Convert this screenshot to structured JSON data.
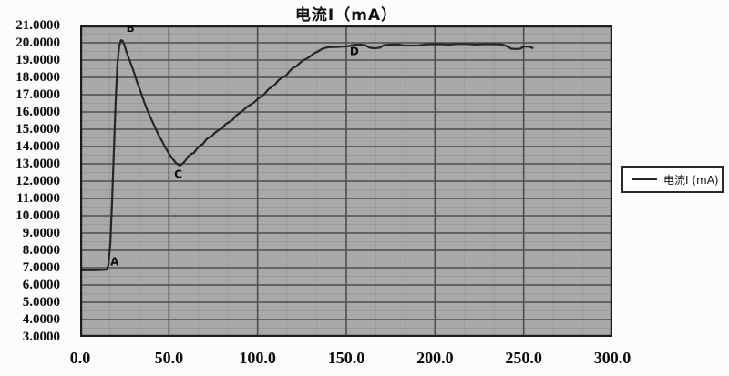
{
  "chart_data": {
    "type": "line",
    "title": "电流I（mA）",
    "x_axis": {
      "min": 0,
      "max": 300,
      "major_interval": 50,
      "tick_labels": [
        "0.0",
        "50.0",
        "100.0",
        "150.0",
        "200.0",
        "250.0",
        "300.0"
      ]
    },
    "y_axis": {
      "min": 3,
      "max": 21,
      "major_interval": 1,
      "tick_labels": [
        "21.0000",
        "20.0000",
        "19.0000",
        "18.0000",
        "17.0000",
        "16.0000",
        "15.0000",
        "14.0000",
        "13.0000",
        "12.0000",
        "11.0000",
        "10.0000",
        "9.0000",
        "8.0000",
        "7.0000",
        "6.0000",
        "5.0000",
        "4.0000",
        "3.0000"
      ]
    },
    "grid": {
      "on": true,
      "plot_bg": "#a9a9a9",
      "major_color": "#4d4d4d",
      "minor_color": "#8f8f8f",
      "border_color": "#1c1c1c"
    },
    "legend": {
      "position": "right",
      "entries": [
        {
          "label": "电流I (mA)",
          "color": "#262626"
        }
      ]
    },
    "annotations": [
      {
        "label": "A",
        "x": 17.0,
        "y": 7.35
      },
      {
        "label": "B",
        "x": 26.0,
        "y": 20.85
      },
      {
        "label": "C",
        "x": 53.0,
        "y": 12.4
      },
      {
        "label": "D",
        "x": 152.0,
        "y": 19.5
      }
    ],
    "series": [
      {
        "name": "电流I (mA)",
        "color": "#262626",
        "points": [
          [
            0,
            6.85
          ],
          [
            8,
            6.85
          ],
          [
            14,
            6.88
          ],
          [
            15,
            6.9
          ],
          [
            16,
            7.2
          ],
          [
            17,
            8.4
          ],
          [
            18,
            10.8
          ],
          [
            19,
            13.8
          ],
          [
            20,
            16.6
          ],
          [
            21,
            18.8
          ],
          [
            22,
            19.8
          ],
          [
            23,
            20.15
          ],
          [
            24,
            20.1
          ],
          [
            25,
            19.85
          ],
          [
            26,
            19.5
          ],
          [
            28,
            18.95
          ],
          [
            30,
            18.4
          ],
          [
            32,
            17.75
          ],
          [
            34,
            17.2
          ],
          [
            36,
            16.6
          ],
          [
            38,
            16.05
          ],
          [
            40,
            15.6
          ],
          [
            42,
            15.15
          ],
          [
            44,
            14.7
          ],
          [
            46,
            14.35
          ],
          [
            48,
            13.95
          ],
          [
            50,
            13.6
          ],
          [
            52,
            13.3
          ],
          [
            54,
            13.05
          ],
          [
            56,
            12.9
          ],
          [
            57,
            12.95
          ],
          [
            59,
            13.15
          ],
          [
            61,
            13.45
          ],
          [
            63,
            13.6
          ],
          [
            64,
            13.62
          ],
          [
            66,
            13.9
          ],
          [
            68,
            14.1
          ],
          [
            69,
            14.12
          ],
          [
            71,
            14.4
          ],
          [
            73,
            14.55
          ],
          [
            74,
            14.58
          ],
          [
            76,
            14.8
          ],
          [
            78,
            14.95
          ],
          [
            80,
            15.05
          ],
          [
            82,
            15.3
          ],
          [
            84,
            15.42
          ],
          [
            86,
            15.55
          ],
          [
            88,
            15.8
          ],
          [
            90,
            15.95
          ],
          [
            92,
            16.1
          ],
          [
            94,
            16.3
          ],
          [
            96,
            16.42
          ],
          [
            98,
            16.55
          ],
          [
            100,
            16.75
          ],
          [
            102,
            16.9
          ],
          [
            104,
            17.05
          ],
          [
            106,
            17.3
          ],
          [
            108,
            17.45
          ],
          [
            110,
            17.6
          ],
          [
            112,
            17.85
          ],
          [
            114,
            18.0
          ],
          [
            116,
            18.1
          ],
          [
            118,
            18.35
          ],
          [
            120,
            18.55
          ],
          [
            122,
            18.65
          ],
          [
            124,
            18.85
          ],
          [
            126,
            19.0
          ],
          [
            128,
            19.1
          ],
          [
            130,
            19.25
          ],
          [
            132,
            19.4
          ],
          [
            134,
            19.5
          ],
          [
            136,
            19.62
          ],
          [
            138,
            19.7
          ],
          [
            140,
            19.75
          ],
          [
            144,
            19.76
          ],
          [
            148,
            19.78
          ],
          [
            151,
            19.8
          ],
          [
            154,
            19.88
          ],
          [
            158,
            19.9
          ],
          [
            161,
            19.85
          ],
          [
            163,
            19.72
          ],
          [
            166,
            19.68
          ],
          [
            169,
            19.72
          ],
          [
            171,
            19.86
          ],
          [
            175,
            19.9
          ],
          [
            179,
            19.9
          ],
          [
            183,
            19.84
          ],
          [
            187,
            19.84
          ],
          [
            191,
            19.85
          ],
          [
            194,
            19.9
          ],
          [
            198,
            19.92
          ],
          [
            203,
            19.92
          ],
          [
            208,
            19.9
          ],
          [
            213,
            19.93
          ],
          [
            218,
            19.93
          ],
          [
            223,
            19.9
          ],
          [
            228,
            19.92
          ],
          [
            233,
            19.92
          ],
          [
            238,
            19.9
          ],
          [
            241,
            19.78
          ],
          [
            243,
            19.66
          ],
          [
            246,
            19.64
          ],
          [
            248,
            19.66
          ],
          [
            250,
            19.78
          ],
          [
            253,
            19.78
          ],
          [
            255,
            19.7
          ]
        ]
      }
    ]
  }
}
